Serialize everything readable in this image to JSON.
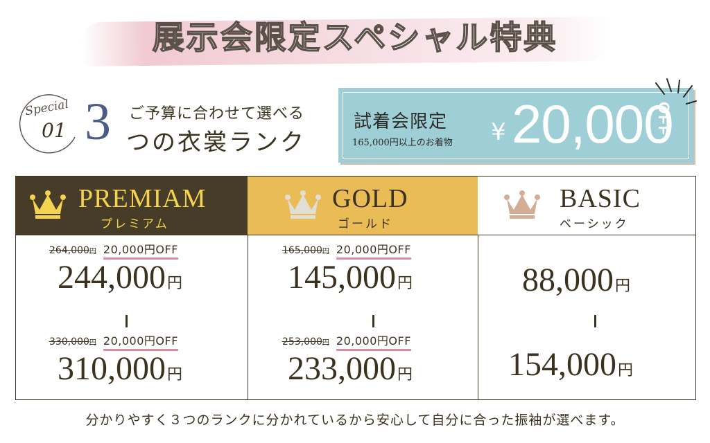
{
  "title": "展示会限定スペシャル特典",
  "special": {
    "word": "Special",
    "number": "01",
    "big_number": "3",
    "line1": "ご予算に合わせて選べる",
    "line2": "つの衣裳ランク"
  },
  "discount": {
    "label": "試着会限定",
    "sub": "165,000円以上のお着物",
    "yen": "¥",
    "amount": "20,000",
    "off": "OFF"
  },
  "ranks": [
    {
      "name": "PREMIAM",
      "kana": "プレミアム",
      "header_color": "#473c27",
      "crown_color": "#f4d34f",
      "low_old": "264,000",
      "low_off": "20,000円OFF",
      "low_price": "244,000",
      "high_old": "330,000",
      "high_off": "20,000円OFF",
      "high_price": "310,000"
    },
    {
      "name": "GOLD",
      "kana": "ゴールド",
      "header_color": "#e9bc55",
      "crown_color": "#d9d6cf",
      "low_old": "165,000",
      "low_off": "20,000円OFF",
      "low_price": "145,000",
      "high_old": "253,000",
      "high_off": "20,000円OFF",
      "high_price": "233,000"
    },
    {
      "name": "BASIC",
      "kana": "ベーシック",
      "header_color": "#ffffff",
      "crown_color": "#d4ad94",
      "low_price": "88,000",
      "high_price": "154,000"
    }
  ],
  "unit_yen": "円",
  "footer": "分かりやすく３つのランクに分かれているから安心して自分に合った振袖が選べます。"
}
